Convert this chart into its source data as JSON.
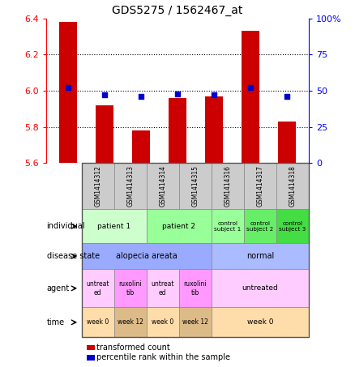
{
  "title": "GDS5275 / 1562467_at",
  "samples": [
    "GSM1414312",
    "GSM1414313",
    "GSM1414314",
    "GSM1414315",
    "GSM1414316",
    "GSM1414317",
    "GSM1414318"
  ],
  "transformed_count": [
    6.38,
    5.92,
    5.78,
    5.96,
    5.97,
    6.33,
    5.83
  ],
  "percentile_rank": [
    52,
    47,
    46,
    48,
    47,
    52,
    46
  ],
  "ylim_left": [
    5.6,
    6.4
  ],
  "ylim_right": [
    0,
    100
  ],
  "yticks_left": [
    5.6,
    5.8,
    6.0,
    6.2,
    6.4
  ],
  "yticks_right": [
    0,
    25,
    50,
    75,
    100
  ],
  "bar_color": "#cc0000",
  "dot_color": "#0000cc",
  "individual_data": [
    {
      "label": "patient 1",
      "span": [
        0,
        2
      ],
      "color": "#ccffcc"
    },
    {
      "label": "patient 2",
      "span": [
        2,
        4
      ],
      "color": "#99ff99"
    },
    {
      "label": "control\nsubject 1",
      "span": [
        4,
        5
      ],
      "color": "#99ff99"
    },
    {
      "label": "control\nsubject 2",
      "span": [
        5,
        6
      ],
      "color": "#66ee66"
    },
    {
      "label": "control\nsubject 3",
      "span": [
        6,
        7
      ],
      "color": "#44dd44"
    }
  ],
  "disease_data": [
    {
      "label": "alopecia areata",
      "span": [
        0,
        4
      ],
      "color": "#99aaff"
    },
    {
      "label": "normal",
      "span": [
        4,
        7
      ],
      "color": "#aabbff"
    }
  ],
  "agent_data": [
    {
      "label": "untreat\ned",
      "span": [
        0,
        1
      ],
      "color": "#ffccff"
    },
    {
      "label": "ruxolini\ntib",
      "span": [
        1,
        2
      ],
      "color": "#ff99ff"
    },
    {
      "label": "untreat\ned",
      "span": [
        2,
        3
      ],
      "color": "#ffccff"
    },
    {
      "label": "ruxolini\ntib",
      "span": [
        3,
        4
      ],
      "color": "#ff99ff"
    },
    {
      "label": "untreated",
      "span": [
        4,
        7
      ],
      "color": "#ffccff"
    }
  ],
  "time_data": [
    {
      "label": "week 0",
      "span": [
        0,
        1
      ],
      "color": "#ffddaa"
    },
    {
      "label": "week 12",
      "span": [
        1,
        2
      ],
      "color": "#ddbb88"
    },
    {
      "label": "week 0",
      "span": [
        2,
        3
      ],
      "color": "#ffddaa"
    },
    {
      "label": "week 12",
      "span": [
        3,
        4
      ],
      "color": "#ddbb88"
    },
    {
      "label": "week 0",
      "span": [
        4,
        7
      ],
      "color": "#ffddaa"
    }
  ],
  "legend_items": [
    {
      "color": "#cc0000",
      "label": "transformed count"
    },
    {
      "color": "#0000cc",
      "label": "percentile rank within the sample"
    }
  ],
  "row_label_info": [
    {
      "label": "individual"
    },
    {
      "label": "disease state"
    },
    {
      "label": "agent"
    },
    {
      "label": "time"
    }
  ]
}
